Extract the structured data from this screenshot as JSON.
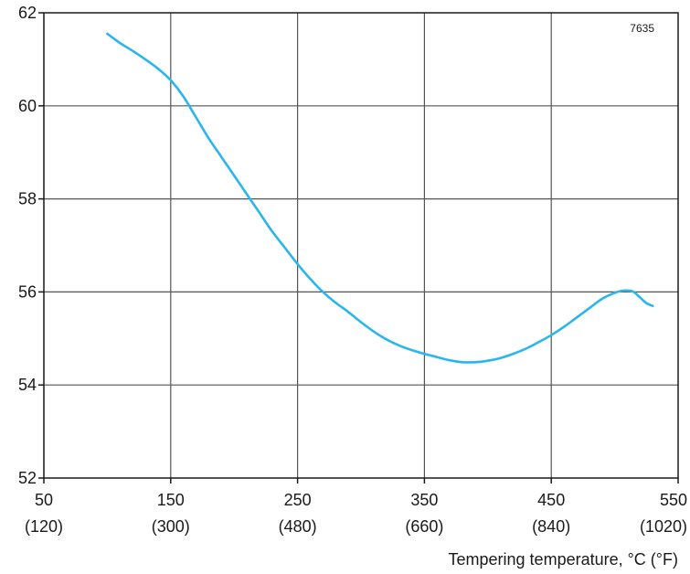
{
  "chart_data": {
    "type": "line",
    "title": "",
    "xlabel": "Tempering temperature, °C (°F)",
    "ylabel": "",
    "annotation": "7635",
    "xlim": [
      50,
      550
    ],
    "ylim": [
      52,
      62
    ],
    "x_ticks": [
      {
        "value": 50,
        "label": "50",
        "sublabel": "(120)"
      },
      {
        "value": 150,
        "label": "150",
        "sublabel": "(300)"
      },
      {
        "value": 250,
        "label": "250",
        "sublabel": "(480)"
      },
      {
        "value": 350,
        "label": "350",
        "sublabel": "(660)"
      },
      {
        "value": 450,
        "label": "450",
        "sublabel": "(840)"
      },
      {
        "value": 550,
        "label": "550",
        "sublabel": "(1020)"
      }
    ],
    "y_ticks": [
      {
        "value": 52,
        "label": "52"
      },
      {
        "value": 54,
        "label": "54"
      },
      {
        "value": 56,
        "label": "56"
      },
      {
        "value": 58,
        "label": "58"
      },
      {
        "value": 60,
        "label": "60"
      },
      {
        "value": 62,
        "label": "62"
      }
    ],
    "grid": true,
    "line_color": "#29b6ef",
    "series": [
      {
        "x": [
          100,
          110,
          120,
          130,
          140,
          150,
          160,
          170,
          180,
          190,
          200,
          210,
          220,
          230,
          240,
          250,
          260,
          270,
          280,
          290,
          300,
          310,
          320,
          330,
          340,
          350,
          360,
          370,
          380,
          390,
          400,
          410,
          420,
          430,
          440,
          450,
          460,
          470,
          480,
          490,
          500,
          505,
          510,
          515,
          520,
          525,
          530
        ],
        "y": [
          61.55,
          61.35,
          61.18,
          61.0,
          60.8,
          60.55,
          60.2,
          59.75,
          59.3,
          58.9,
          58.5,
          58.1,
          57.7,
          57.3,
          56.95,
          56.6,
          56.28,
          56.0,
          55.77,
          55.57,
          55.35,
          55.15,
          54.98,
          54.85,
          54.75,
          54.67,
          54.6,
          54.53,
          54.49,
          54.49,
          54.52,
          54.58,
          54.67,
          54.78,
          54.92,
          55.07,
          55.25,
          55.45,
          55.65,
          55.85,
          55.98,
          56.02,
          56.03,
          56.0,
          55.88,
          55.76,
          55.7
        ]
      }
    ]
  }
}
